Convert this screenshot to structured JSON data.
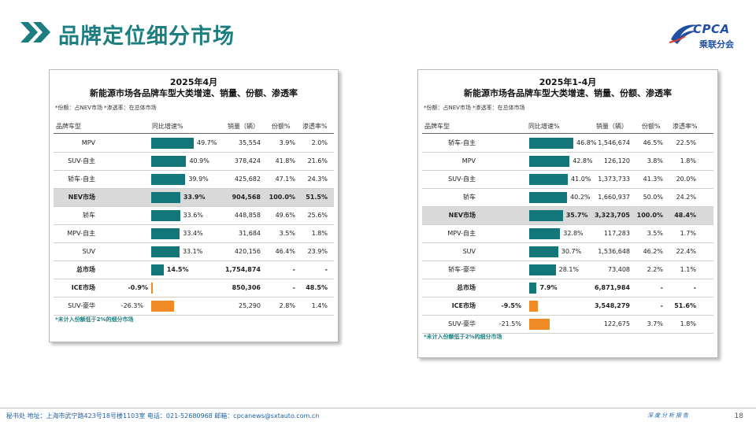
{
  "header": {
    "title": "品牌定位细分市场",
    "logo_text": "CPCA",
    "logo_cn": "乘联分会"
  },
  "colors": {
    "teal": "#13777a",
    "orange": "#f08a24",
    "highlight_row": "#d9d9d9",
    "title": "#1d7e80"
  },
  "left_panel": {
    "title1": "2025年4月",
    "title2": "新能源市场各品牌车型大类增速、销量、份额、渗透率",
    "note": "*份额：占NEV市场   *渗透率：在总体市场",
    "headers": [
      "品牌车型",
      "同比增速%",
      "销量（辆）",
      "份额%",
      "渗透率%"
    ],
    "footnote": "*未计入份额低于2%的细分市场",
    "rows": [
      {
        "name": "MPV",
        "growth": "49.7%",
        "sales": "35,554",
        "share": "3.9%",
        "pen": "2.0%",
        "g": 49.7
      },
      {
        "name": "SUV-自主",
        "growth": "40.9%",
        "sales": "378,424",
        "share": "41.8%",
        "pen": "21.6%",
        "g": 40.9
      },
      {
        "name": "轿车-自主",
        "growth": "39.9%",
        "sales": "425,682",
        "share": "47.1%",
        "pen": "24.3%",
        "g": 39.9
      },
      {
        "name": "NEV市场",
        "growth": "33.9%",
        "sales": "904,568",
        "share": "100.0%",
        "pen": "51.5%",
        "g": 33.9,
        "highlight": true
      },
      {
        "name": "轿车",
        "growth": "33.6%",
        "sales": "448,858",
        "share": "49.6%",
        "pen": "25.6%",
        "g": 33.6
      },
      {
        "name": "MPV-自主",
        "growth": "33.4%",
        "sales": "31,684",
        "share": "3.5%",
        "pen": "1.8%",
        "g": 33.4
      },
      {
        "name": "SUV",
        "growth": "33.1%",
        "sales": "420,156",
        "share": "46.4%",
        "pen": "23.9%",
        "g": 33.1
      },
      {
        "name": "总市场",
        "growth": "14.5%",
        "sales": "1,754,874",
        "share": "-",
        "pen": "-",
        "g": 14.5,
        "bold": true
      },
      {
        "name": "ICE市场",
        "growth": "-0.9%",
        "sales": "850,306",
        "share": "-",
        "pen": "48.5%",
        "g": -0.9,
        "bold": true
      },
      {
        "name": "SUV-豪华",
        "growth": "-26.3%",
        "sales": "25,290",
        "share": "2.8%",
        "pen": "1.4%",
        "g": -26.3
      }
    ]
  },
  "right_panel": {
    "title1": "2025年1-4月",
    "title2": "新能源市场各品牌车型大类增速、销量、份额、渗透率",
    "note": "*份额：占NEV市场   *渗透率：在总体市场",
    "headers": [
      "品牌车型",
      "同比增速%",
      "销量（辆）",
      "份额%",
      "渗透率%"
    ],
    "footnote": "*未计入份额低于2%的细分市场",
    "rows": [
      {
        "name": "轿车-自主",
        "growth": "46.8%",
        "sales": "1,546,674",
        "share": "46.5%",
        "pen": "22.5%",
        "g": 46.8
      },
      {
        "name": "MPV",
        "growth": "42.8%",
        "sales": "126,120",
        "share": "3.8%",
        "pen": "1.8%",
        "g": 42.8
      },
      {
        "name": "SUV-自主",
        "growth": "41.0%",
        "sales": "1,373,733",
        "share": "41.3%",
        "pen": "20.0%",
        "g": 41.0
      },
      {
        "name": "轿车",
        "growth": "40.2%",
        "sales": "1,660,937",
        "share": "50.0%",
        "pen": "24.2%",
        "g": 40.2
      },
      {
        "name": "NEV市场",
        "growth": "35.7%",
        "sales": "3,323,705",
        "share": "100.0%",
        "pen": "48.4%",
        "g": 35.7,
        "highlight": true
      },
      {
        "name": "MPV-自主",
        "growth": "32.8%",
        "sales": "117,283",
        "share": "3.5%",
        "pen": "1.7%",
        "g": 32.8
      },
      {
        "name": "SUV",
        "growth": "30.7%",
        "sales": "1,536,648",
        "share": "46.2%",
        "pen": "22.4%",
        "g": 30.7
      },
      {
        "name": "轿车-豪华",
        "growth": "28.1%",
        "sales": "73,408",
        "share": "2.2%",
        "pen": "1.1%",
        "g": 28.1
      },
      {
        "name": "总市场",
        "growth": "7.9%",
        "sales": "6,871,984",
        "share": "-",
        "pen": "-",
        "g": 7.9,
        "bold": true
      },
      {
        "name": "ICE市场",
        "growth": "-9.5%",
        "sales": "3,548,279",
        "share": "-",
        "pen": "51.6%",
        "g": -9.5,
        "bold": true
      },
      {
        "name": "SUV-豪华",
        "growth": "-21.5%",
        "sales": "122,675",
        "share": "3.7%",
        "pen": "1.8%",
        "g": -21.5
      }
    ]
  },
  "footer": {
    "address": "秘书处  地址：上海市武宁路423号18号楼1103室  电话：021-52680968  邮箱：cpcanews@sxtauto.com.cn",
    "slogan": "深度分析报告",
    "page": "18"
  }
}
